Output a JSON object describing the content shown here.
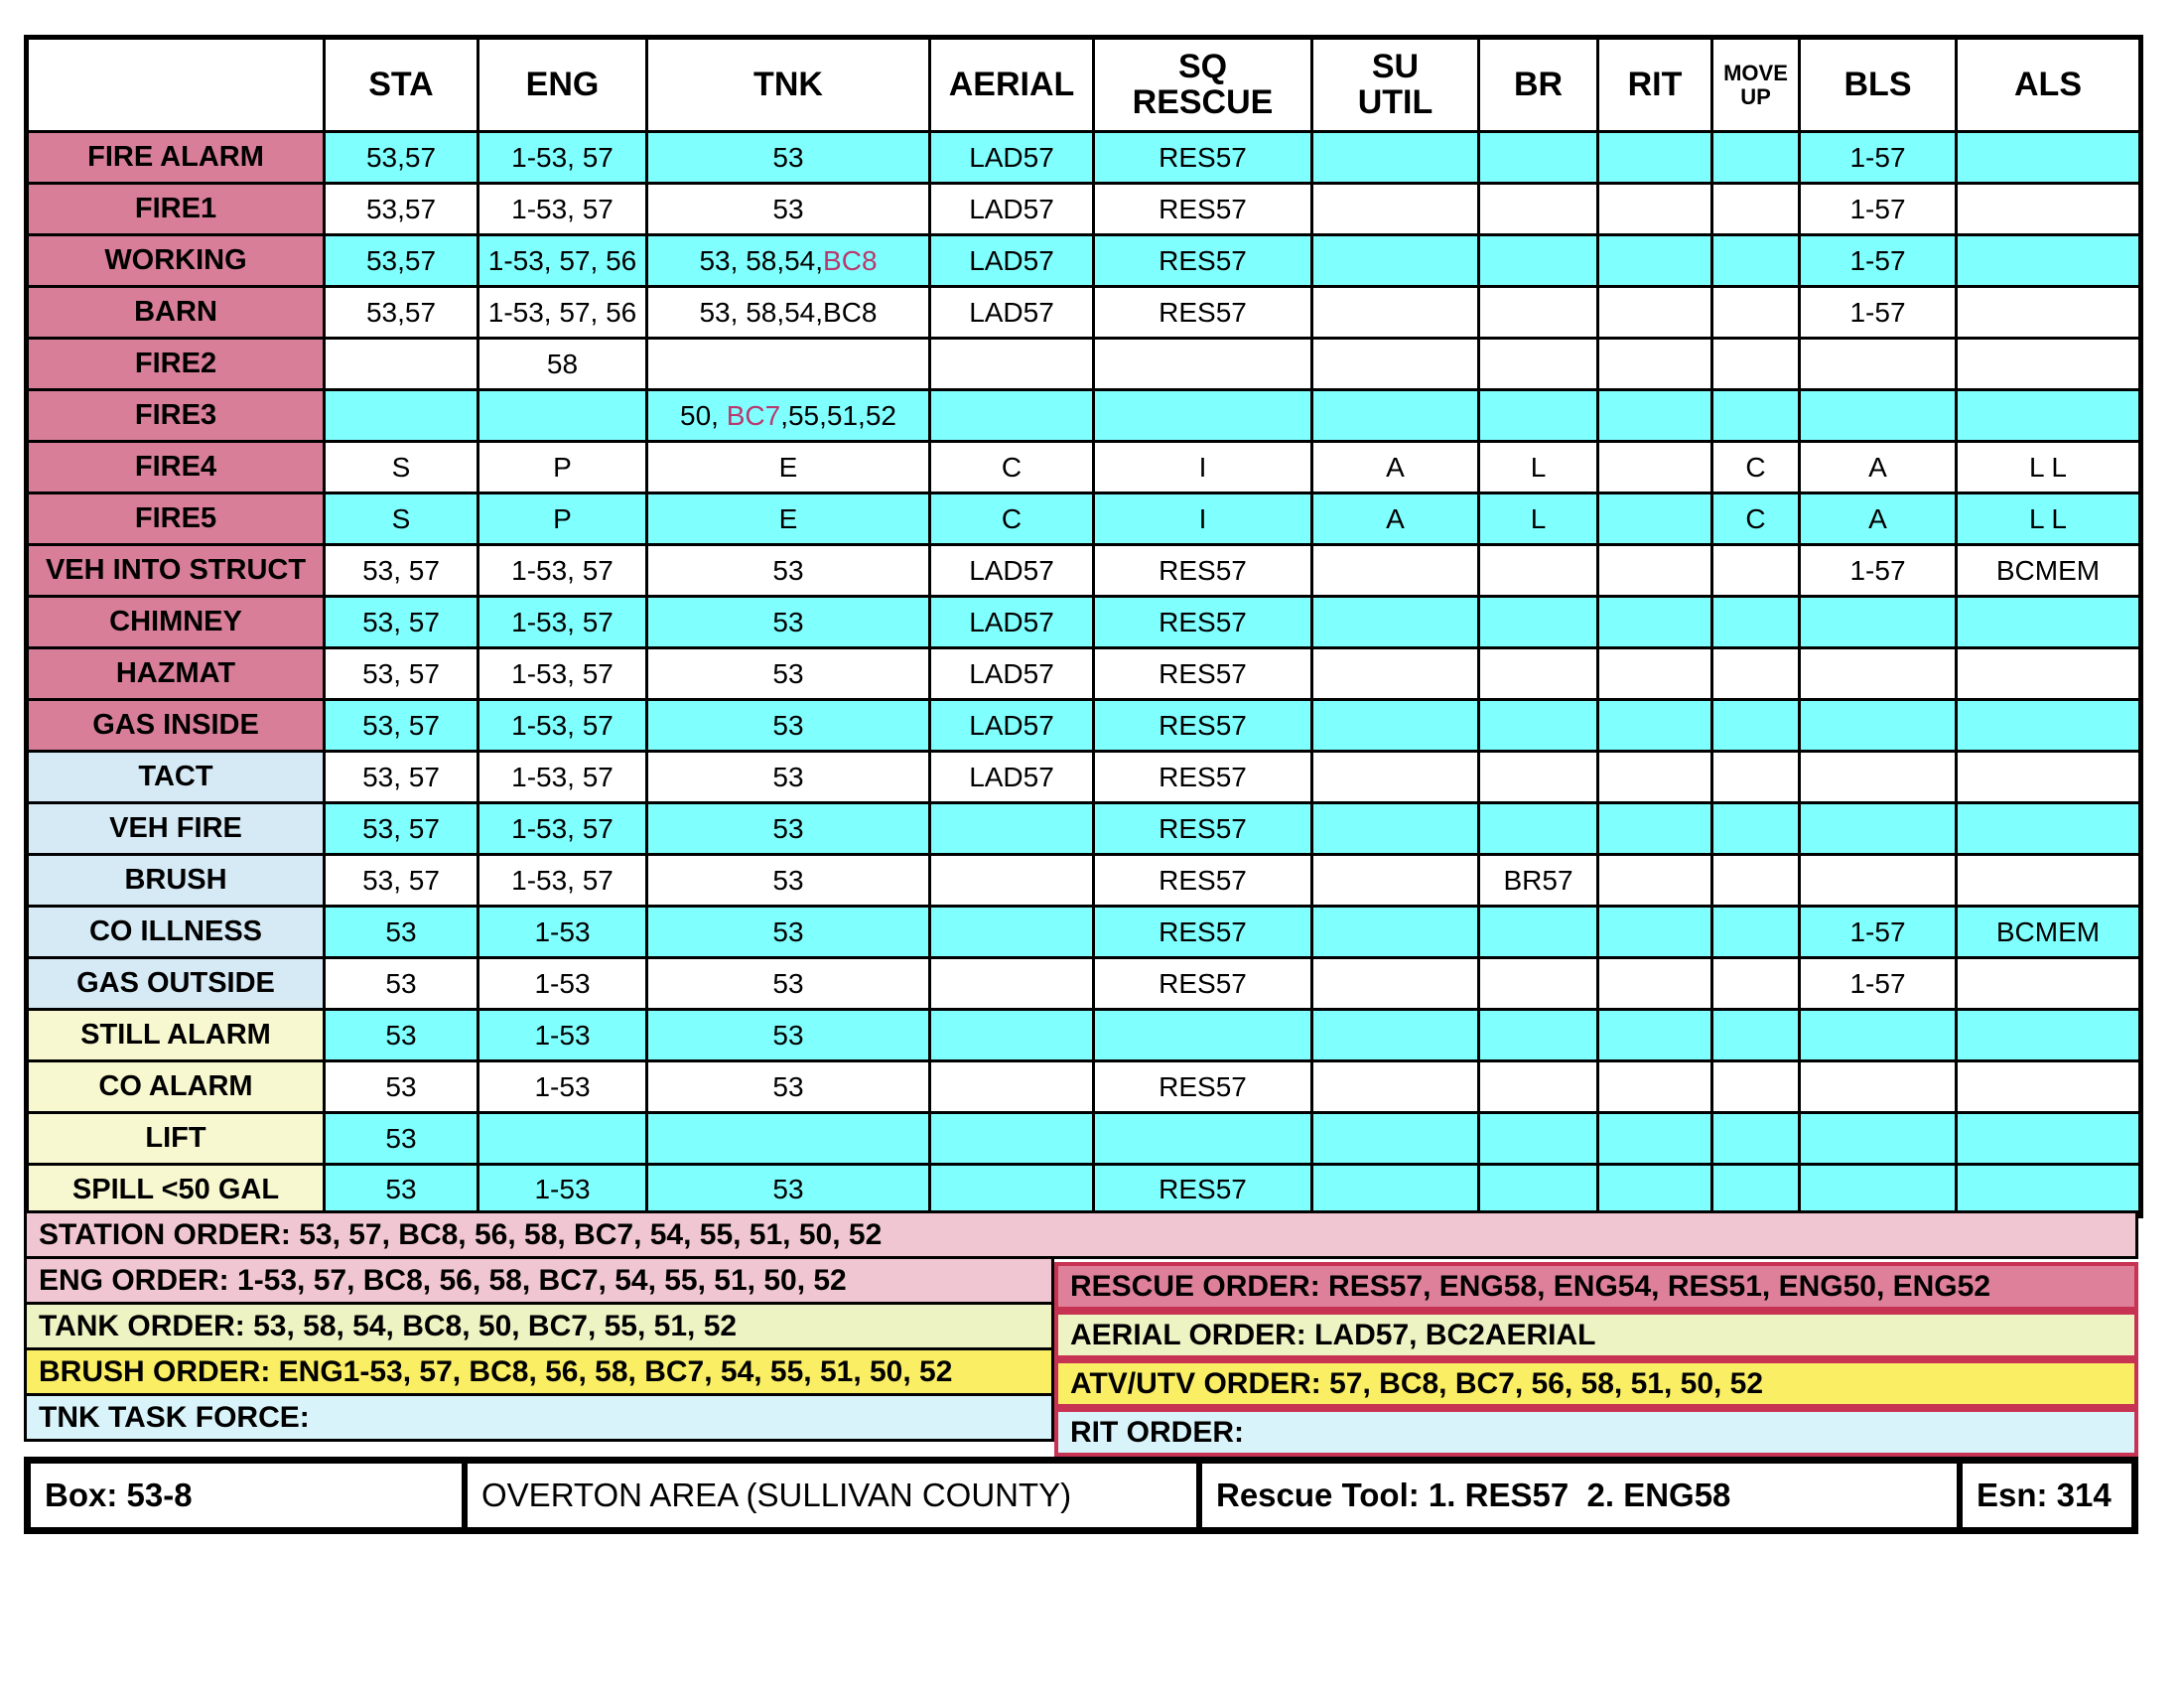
{
  "table": {
    "columns": [
      "STA",
      "ENG",
      "TNK",
      "AERIAL",
      "SQ\nRESCUE",
      "SU\nUTIL",
      "BR",
      "RIT",
      "MOVE\nUP",
      "BLS",
      "ALS"
    ],
    "rows": [
      {
        "label": "FIRE ALARM",
        "header_color": "pink",
        "row_color": "cyan",
        "cells": [
          "53,57",
          "1-53, 57",
          "53",
          "LAD57",
          "RES57",
          "",
          "",
          "",
          "",
          "1-57",
          ""
        ]
      },
      {
        "label": "FIRE1",
        "header_color": "pink",
        "row_color": "white",
        "cells": [
          "53,57",
          "1-53, 57",
          "53",
          "LAD57",
          "RES57",
          "",
          "",
          "",
          "",
          "1-57",
          ""
        ]
      },
      {
        "label": "WORKING",
        "header_color": "pink",
        "row_color": "cyan",
        "cells": [
          "53,57",
          "1-53, 57, 56",
          [
            {
              "t": "53, 58,54,"
            },
            {
              "t": "BC8",
              "c": "pink"
            }
          ],
          "LAD57",
          "RES57",
          "",
          "",
          "",
          "",
          "1-57",
          ""
        ]
      },
      {
        "label": "BARN",
        "header_color": "pink",
        "row_color": "white",
        "cells": [
          "53,57",
          "1-53, 57, 56",
          "53, 58,54,BC8",
          "LAD57",
          "RES57",
          "",
          "",
          "",
          "",
          "1-57",
          ""
        ]
      },
      {
        "label": "FIRE2",
        "header_color": "pink",
        "row_color": "white",
        "cells": [
          "",
          "58",
          "",
          "",
          "",
          "",
          "",
          "",
          "",
          "",
          ""
        ]
      },
      {
        "label": "FIRE3",
        "header_color": "pink",
        "row_color": "cyan",
        "cells": [
          "",
          "",
          [
            {
              "t": "50, "
            },
            {
              "t": "BC7",
              "c": "pink"
            },
            {
              "t": ",55,51,52"
            }
          ],
          "",
          "",
          "",
          "",
          "",
          "",
          "",
          ""
        ]
      },
      {
        "label": "FIRE4",
        "header_color": "pink",
        "row_color": "white",
        "cells": [
          "S",
          "P",
          "E",
          "C",
          "I",
          "A",
          "L",
          "",
          "C",
          "A",
          "L L"
        ]
      },
      {
        "label": "FIRE5",
        "header_color": "pink",
        "row_color": "cyan",
        "cells": [
          "S",
          "P",
          "E",
          "C",
          "I",
          "A",
          "L",
          "",
          "C",
          "A",
          "L L"
        ]
      },
      {
        "label": "VEH INTO STRUCT",
        "header_color": "pink",
        "row_color": "white",
        "cells": [
          "53, 57",
          "1-53, 57",
          "53",
          "LAD57",
          "RES57",
          "",
          "",
          "",
          "",
          "1-57",
          "BCMEM"
        ]
      },
      {
        "label": "CHIMNEY",
        "header_color": "pink",
        "row_color": "cyan",
        "cells": [
          "53, 57",
          "1-53, 57",
          "53",
          "LAD57",
          "RES57",
          "",
          "",
          "",
          "",
          "",
          ""
        ]
      },
      {
        "label": "HAZMAT",
        "header_color": "pink",
        "row_color": "white",
        "cells": [
          "53, 57",
          "1-53, 57",
          "53",
          "LAD57",
          "RES57",
          "",
          "",
          "",
          "",
          "",
          ""
        ]
      },
      {
        "label": "GAS INSIDE",
        "header_color": "pink",
        "row_color": "cyan",
        "cells": [
          "53, 57",
          "1-53, 57",
          "53",
          "LAD57",
          "RES57",
          "",
          "",
          "",
          "",
          "",
          ""
        ]
      },
      {
        "label": "TACT",
        "header_color": "blue",
        "row_color": "white",
        "cells": [
          "53, 57",
          "1-53, 57",
          "53",
          "LAD57",
          "RES57",
          "",
          "",
          "",
          "",
          "",
          ""
        ]
      },
      {
        "label": "VEH FIRE",
        "header_color": "blue",
        "row_color": "cyan",
        "cells": [
          "53, 57",
          "1-53, 57",
          "53",
          "",
          "RES57",
          "",
          "",
          "",
          "",
          "",
          ""
        ]
      },
      {
        "label": "BRUSH",
        "header_color": "blue",
        "row_color": "white",
        "cells": [
          "53, 57",
          "1-53, 57",
          "53",
          "",
          "RES57",
          "",
          "BR57",
          "",
          "",
          "",
          ""
        ]
      },
      {
        "label": "CO ILLNESS",
        "header_color": "blue",
        "row_color": "cyan",
        "cells": [
          "53",
          "1-53",
          "53",
          "",
          "RES57",
          "",
          "",
          "",
          "",
          "1-57",
          "BCMEM"
        ]
      },
      {
        "label": "GAS OUTSIDE",
        "header_color": "blue",
        "row_color": "white",
        "cells": [
          "53",
          "1-53",
          "53",
          "",
          "RES57",
          "",
          "",
          "",
          "",
          "1-57",
          ""
        ]
      },
      {
        "label": "STILL ALARM",
        "header_color": "yellow",
        "row_color": "cyan",
        "cells": [
          "53",
          "1-53",
          "53",
          "",
          "",
          "",
          "",
          "",
          "",
          "",
          ""
        ]
      },
      {
        "label": "CO ALARM",
        "header_color": "yellow",
        "row_color": "white",
        "cells": [
          "53",
          "1-53",
          "53",
          "",
          "RES57",
          "",
          "",
          "",
          "",
          "",
          ""
        ]
      },
      {
        "label": "LIFT",
        "header_color": "yellow",
        "row_color": "cyan",
        "cells": [
          "53",
          "",
          "",
          "",
          "",
          "",
          "",
          "",
          "",
          "",
          ""
        ]
      },
      {
        "label": "SPILL <50 GAL",
        "header_color": "yellow",
        "row_color": "cyan",
        "cells": [
          "53",
          "1-53",
          "53",
          "",
          "RES57",
          "",
          "",
          "",
          "",
          "",
          ""
        ]
      }
    ]
  },
  "orders": {
    "station": "STATION ORDER: 53, 57, BC8, 56, 58, BC7, 54, 55, 51, 50, 52",
    "eng": "ENG ORDER: 1-53, 57, BC8, 56, 58, BC7, 54, 55, 51, 50, 52",
    "tank": "TANK ORDER: 53, 58, 54, BC8, 50, BC7, 55, 51, 52",
    "brush": "BRUSH ORDER: ENG1-53, 57, BC8, 56, 58, BC7, 54, 55, 51, 50, 52",
    "tnk_task_force": "TNK TASK FORCE:",
    "rescue": "RESCUE ORDER: RES57, ENG58, ENG54, RES51, ENG50, ENG52",
    "aerial": "AERIAL ORDER: LAD57, BC2AERIAL",
    "atv_utv": "ATV/UTV ORDER: 57, BC8, BC7, 56, 58, 51, 50, 52",
    "rit": "RIT ORDER:"
  },
  "bottom": {
    "box": "Box: 53-8",
    "area": "OVERTON AREA (SULLIVAN COUNTY)",
    "rescue_tool": "Rescue Tool: 1. RES57  2. ENG58",
    "esn": "Esn: 314"
  },
  "colors": {
    "cell_cyan": "#80ffff",
    "row_header_pink": "#d87e98",
    "row_header_blue": "#d6eaf6",
    "row_header_yellow": "#f8f8d0",
    "order_pink": "#f0c6d2",
    "order_dark_pink": "#de809a",
    "order_green": "#eef3c4",
    "order_yellow": "#faee64",
    "order_cyan": "#d8f3f9",
    "special_unit_text": "#b73a6e",
    "order_box_border": "#c73352",
    "grid_border": "#000000"
  }
}
